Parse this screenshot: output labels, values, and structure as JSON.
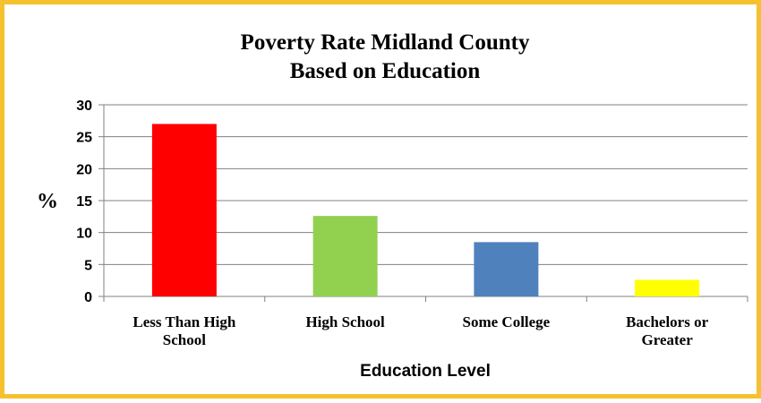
{
  "chart_data": {
    "type": "bar",
    "title": "Poverty Rate Midland County",
    "subtitle": "Based on Education",
    "ylabel": "%",
    "xlabel": "Education Level",
    "categories": [
      [
        "Less Than High",
        "School"
      ],
      [
        "High School"
      ],
      [
        "Some College"
      ],
      [
        "Bachelors or",
        "Greater"
      ]
    ],
    "values": [
      27,
      12.6,
      8.5,
      2.6
    ],
    "colors": [
      "#ff0000",
      "#92d050",
      "#4f81bd",
      "#ffff00"
    ],
    "ylim": [
      0,
      30
    ],
    "yticks": [
      0,
      5,
      10,
      15,
      20,
      25,
      30
    ],
    "grid": true,
    "legend": "none"
  },
  "style": {
    "border_color": "#f5c12e",
    "grid_color": "#808080",
    "axis_color": "#808080"
  }
}
